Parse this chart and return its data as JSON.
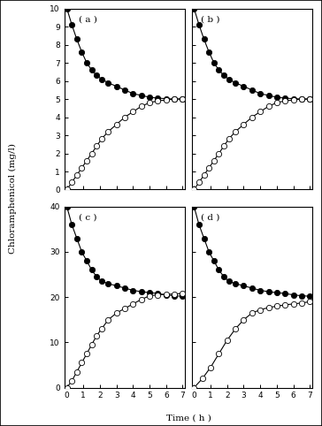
{
  "panels": [
    {
      "label": "( a )",
      "ylim": [
        0,
        10
      ],
      "yticks": [
        0,
        1,
        2,
        3,
        4,
        5,
        6,
        7,
        8,
        9,
        10
      ],
      "yticklabels": [
        "0",
        "1",
        "2",
        "3",
        "4",
        "5",
        "6",
        "7",
        "8",
        "9",
        "10"
      ],
      "filled_x": [
        0,
        0.3,
        0.6,
        0.9,
        1.2,
        1.5,
        1.8,
        2.1,
        2.5,
        3.0,
        3.5,
        4.0,
        4.5,
        5.0,
        5.5,
        6.0,
        6.5,
        7.0
      ],
      "filled_y": [
        10,
        9.1,
        8.3,
        7.6,
        7.0,
        6.6,
        6.3,
        6.1,
        5.9,
        5.7,
        5.5,
        5.3,
        5.2,
        5.1,
        5.05,
        5.02,
        5.0,
        5.0
      ],
      "open_x": [
        0,
        0.3,
        0.6,
        0.9,
        1.2,
        1.5,
        1.8,
        2.1,
        2.5,
        3.0,
        3.5,
        4.0,
        4.5,
        5.0,
        5.5,
        6.0,
        6.5,
        7.0
      ],
      "open_y": [
        0,
        0.4,
        0.8,
        1.2,
        1.6,
        2.0,
        2.4,
        2.8,
        3.2,
        3.6,
        4.0,
        4.3,
        4.6,
        4.8,
        4.9,
        4.95,
        5.0,
        5.0
      ]
    },
    {
      "label": "( b )",
      "ylim": [
        0,
        10
      ],
      "yticks": [
        0,
        1,
        2,
        3,
        4,
        5,
        6,
        7,
        8,
        9,
        10
      ],
      "yticklabels": [
        "",
        "",
        "",
        "",
        "",
        "",
        "",
        "",
        "",
        "",
        ""
      ],
      "filled_x": [
        0,
        0.3,
        0.6,
        0.9,
        1.2,
        1.5,
        1.8,
        2.1,
        2.5,
        3.0,
        3.5,
        4.0,
        4.5,
        5.0,
        5.5,
        6.0,
        6.5,
        7.0
      ],
      "filled_y": [
        10,
        9.1,
        8.3,
        7.6,
        7.0,
        6.6,
        6.3,
        6.1,
        5.9,
        5.7,
        5.5,
        5.3,
        5.2,
        5.1,
        5.05,
        5.02,
        5.0,
        5.0
      ],
      "open_x": [
        0,
        0.3,
        0.6,
        0.9,
        1.2,
        1.5,
        1.8,
        2.1,
        2.5,
        3.0,
        3.5,
        4.0,
        4.5,
        5.0,
        5.5,
        6.0,
        6.5,
        7.0
      ],
      "open_y": [
        0,
        0.4,
        0.8,
        1.2,
        1.6,
        2.0,
        2.4,
        2.8,
        3.2,
        3.6,
        4.0,
        4.3,
        4.6,
        4.8,
        4.9,
        4.95,
        5.0,
        5.0
      ]
    },
    {
      "label": "( c )",
      "ylim": [
        0,
        40
      ],
      "yticks": [
        0,
        10,
        20,
        30,
        40
      ],
      "yticklabels": [
        "0",
        "10",
        "20",
        "30",
        "40"
      ],
      "filled_x": [
        0,
        0.3,
        0.6,
        0.9,
        1.2,
        1.5,
        1.8,
        2.1,
        2.5,
        3.0,
        3.5,
        4.0,
        4.5,
        5.0,
        5.5,
        6.0,
        6.5,
        7.0
      ],
      "filled_y": [
        40,
        36,
        33,
        30,
        28,
        26,
        24.5,
        23.5,
        23.0,
        22.5,
        22.0,
        21.5,
        21.2,
        21.0,
        20.8,
        20.5,
        20.3,
        20.2
      ],
      "open_x": [
        0,
        0.3,
        0.6,
        0.9,
        1.2,
        1.5,
        1.8,
        2.1,
        2.5,
        3.0,
        3.5,
        4.0,
        4.5,
        5.0,
        5.5,
        6.0,
        6.5,
        7.0
      ],
      "open_y": [
        0,
        1.5,
        3.5,
        5.5,
        7.5,
        9.5,
        11.5,
        13.0,
        15.0,
        16.5,
        17.5,
        18.5,
        19.5,
        20.3,
        20.5,
        20.6,
        20.7,
        20.8
      ]
    },
    {
      "label": "( d )",
      "ylim": [
        0,
        40
      ],
      "yticks": [
        0,
        10,
        20,
        30,
        40
      ],
      "yticklabels": [
        "",
        "",
        "",
        "",
        ""
      ],
      "filled_x": [
        0,
        0.3,
        0.6,
        0.9,
        1.2,
        1.5,
        1.8,
        2.1,
        2.5,
        3.0,
        3.5,
        4.0,
        4.5,
        5.0,
        5.5,
        6.0,
        6.5,
        7.0
      ],
      "filled_y": [
        40,
        36,
        33,
        30,
        28,
        26,
        24.5,
        23.5,
        23.0,
        22.5,
        22.0,
        21.5,
        21.2,
        21.0,
        20.8,
        20.5,
        20.3,
        20.2
      ],
      "open_x": [
        0,
        0.5,
        1.0,
        1.5,
        2.0,
        2.5,
        3.0,
        3.5,
        4.0,
        4.5,
        5.0,
        5.5,
        6.0,
        6.5,
        7.0
      ],
      "open_y": [
        0,
        2.0,
        4.5,
        7.5,
        10.5,
        13.0,
        15.0,
        16.5,
        17.2,
        17.7,
        18.0,
        18.3,
        18.5,
        18.7,
        19.0
      ]
    }
  ],
  "xlabel": "Time ( h )",
  "ylabel": "Chloramphenicol (mg/l)",
  "xticks": [
    0,
    1,
    2,
    3,
    4,
    5,
    6,
    7
  ],
  "xticklabels": [
    "0",
    "1",
    "2",
    "3",
    "4",
    "5",
    "6",
    "7"
  ],
  "line_color": "black",
  "bg_color": "white",
  "marker_size": 4.5,
  "line_width": 0.8
}
